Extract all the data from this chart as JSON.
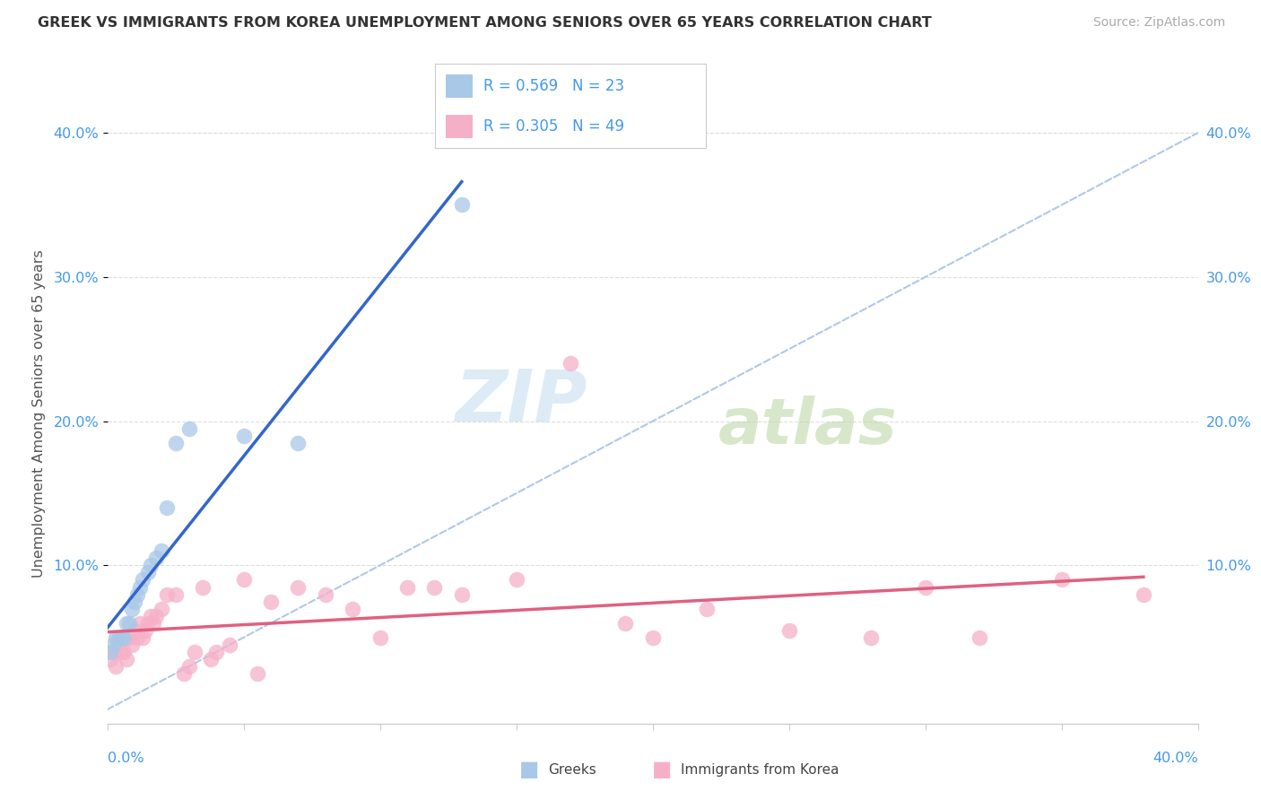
{
  "title": "GREEK VS IMMIGRANTS FROM KOREA UNEMPLOYMENT AMONG SENIORS OVER 65 YEARS CORRELATION CHART",
  "source": "Source: ZipAtlas.com",
  "ylabel": "Unemployment Among Seniors over 65 years",
  "xlim": [
    0.0,
    0.4
  ],
  "ylim": [
    -0.01,
    0.42
  ],
  "greek_R": 0.569,
  "greek_N": 23,
  "korea_R": 0.305,
  "korea_N": 49,
  "greek_color": "#a8c8e8",
  "korea_color": "#f5b0c8",
  "greek_line_color": "#3366cc",
  "korea_line_color": "#e06080",
  "dashed_line_color": "#b0c8e8",
  "text_blue": "#4499ee",
  "greek_x": [
    0.001,
    0.002,
    0.003,
    0.004,
    0.005,
    0.006,
    0.007,
    0.008,
    0.009,
    0.01,
    0.011,
    0.012,
    0.013,
    0.015,
    0.016,
    0.018,
    0.02,
    0.022,
    0.025,
    0.03,
    0.05,
    0.07,
    0.13
  ],
  "greek_y": [
    0.04,
    0.045,
    0.05,
    0.05,
    0.05,
    0.05,
    0.06,
    0.06,
    0.07,
    0.075,
    0.08,
    0.085,
    0.09,
    0.095,
    0.1,
    0.105,
    0.11,
    0.14,
    0.185,
    0.195,
    0.19,
    0.185,
    0.35
  ],
  "korea_x": [
    0.001,
    0.002,
    0.003,
    0.004,
    0.005,
    0.006,
    0.007,
    0.008,
    0.009,
    0.01,
    0.011,
    0.012,
    0.013,
    0.014,
    0.015,
    0.016,
    0.017,
    0.018,
    0.02,
    0.022,
    0.025,
    0.028,
    0.03,
    0.032,
    0.035,
    0.038,
    0.04,
    0.045,
    0.05,
    0.055,
    0.06,
    0.07,
    0.08,
    0.09,
    0.1,
    0.11,
    0.12,
    0.13,
    0.15,
    0.17,
    0.19,
    0.2,
    0.22,
    0.25,
    0.28,
    0.3,
    0.32,
    0.35,
    0.38
  ],
  "korea_y": [
    0.035,
    0.04,
    0.03,
    0.045,
    0.04,
    0.04,
    0.035,
    0.05,
    0.045,
    0.055,
    0.05,
    0.06,
    0.05,
    0.055,
    0.06,
    0.065,
    0.06,
    0.065,
    0.07,
    0.08,
    0.08,
    0.025,
    0.03,
    0.04,
    0.085,
    0.035,
    0.04,
    0.045,
    0.09,
    0.025,
    0.075,
    0.085,
    0.08,
    0.07,
    0.05,
    0.085,
    0.085,
    0.08,
    0.09,
    0.24,
    0.06,
    0.05,
    0.07,
    0.055,
    0.05,
    0.085,
    0.05,
    0.09,
    0.08
  ]
}
